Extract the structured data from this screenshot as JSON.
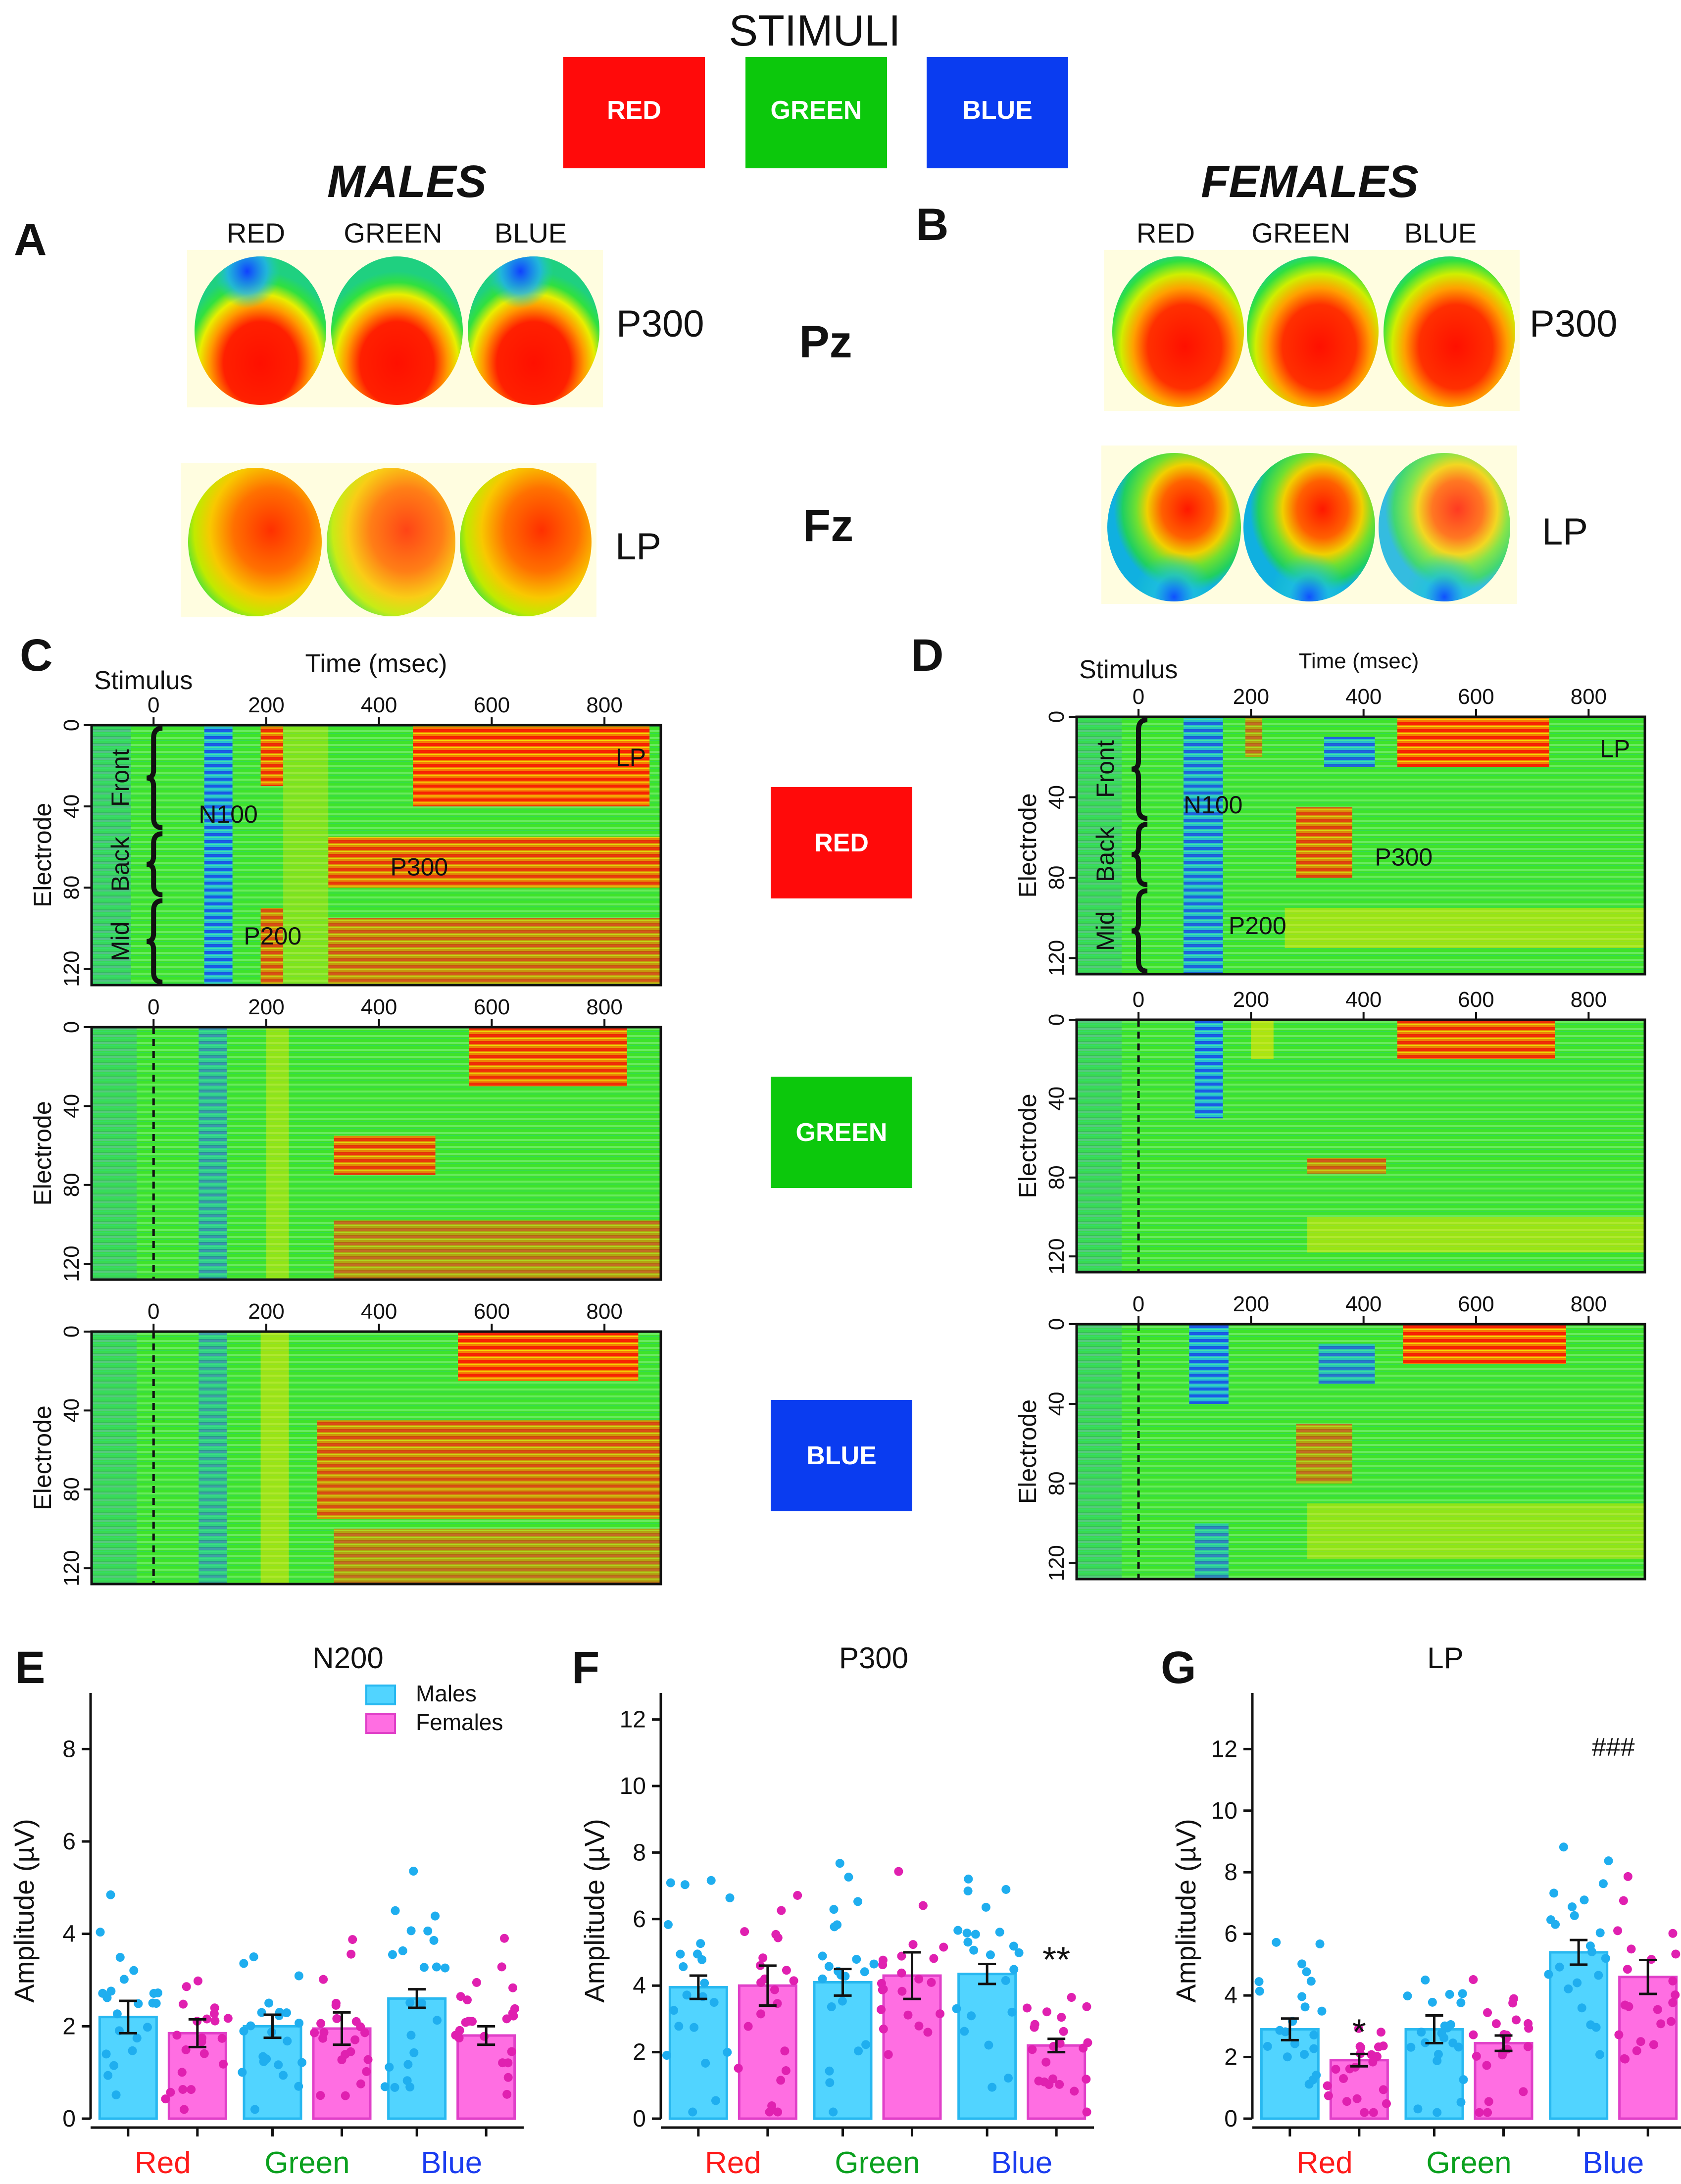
{
  "stimuli": {
    "title": "STIMULI",
    "items": [
      {
        "label": "RED",
        "color": "#ff0a0a"
      },
      {
        "label": "GREEN",
        "color": "#0cc80c"
      },
      {
        "label": "BLUE",
        "color": "#0a3cf0"
      }
    ]
  },
  "sex_titles": {
    "males": "MALES",
    "females": "FEMALES"
  },
  "panel_letters": [
    "A",
    "B",
    "C",
    "D",
    "E",
    "F",
    "G"
  ],
  "topo": {
    "color_labels": [
      "RED",
      "GREEN",
      "BLUE"
    ],
    "component_labels": {
      "p300": "P300",
      "lp": "LP"
    },
    "electrode_labels": {
      "pz": "Pz",
      "fz": "Fz"
    }
  },
  "heatmap": {
    "stimulus_label": "Stimulus",
    "time_label_males": "Time (msec)",
    "time_label_females": "Time (msec)",
    "y_label": "Electrode",
    "x_ticks": [
      "0",
      "200",
      "400",
      "600",
      "800"
    ],
    "y_ticks": [
      "0",
      "40",
      "80",
      "120"
    ],
    "region_labels": [
      "Front",
      "Back",
      "Mid"
    ],
    "component_labels": {
      "n100": "N100",
      "p200": "P200",
      "p300": "P300",
      "lp": "LP"
    },
    "center_stimuli": [
      {
        "label": "RED",
        "color": "#ff0a0a"
      },
      {
        "label": "GREEN",
        "color": "#0cc80c"
      },
      {
        "label": "BLUE",
        "color": "#0a3cf0"
      }
    ]
  },
  "chart_data": [
    {
      "panel": "E",
      "type": "bar",
      "title": "N200",
      "ylabel": "Amplitude (µV)",
      "ylim": [
        0,
        9
      ],
      "yticks": [
        0,
        2,
        4,
        6,
        8
      ],
      "categories": [
        "Red",
        "Green",
        "Blue"
      ],
      "category_colors": [
        "#ff1a1a",
        "#0aa01e",
        "#1a3cf0"
      ],
      "legend": [
        "Males",
        "Females"
      ],
      "series": [
        {
          "name": "Males",
          "color": "#33ccff",
          "values": [
            2.2,
            2.0,
            2.6
          ],
          "sem": [
            0.35,
            0.25,
            0.2
          ]
        },
        {
          "name": "Females",
          "color": "#ff55dd",
          "values": [
            1.85,
            1.95,
            1.8
          ],
          "sem": [
            0.3,
            0.35,
            0.2
          ]
        }
      ],
      "annotations": []
    },
    {
      "panel": "F",
      "type": "bar",
      "title": "P300",
      "ylabel": "Amplitude (µV)",
      "ylim": [
        0,
        12.5
      ],
      "yticks": [
        0,
        2,
        4,
        6,
        8,
        10,
        12
      ],
      "categories": [
        "Red",
        "Green",
        "Blue"
      ],
      "category_colors": [
        "#ff1a1a",
        "#0aa01e",
        "#1a3cf0"
      ],
      "series": [
        {
          "name": "Males",
          "color": "#33ccff",
          "values": [
            3.95,
            4.1,
            4.35
          ],
          "sem": [
            0.35,
            0.4,
            0.3
          ]
        },
        {
          "name": "Females",
          "color": "#ff55dd",
          "values": [
            4.0,
            4.3,
            2.2
          ],
          "sem": [
            0.6,
            0.7,
            0.2
          ]
        }
      ],
      "annotations": [
        {
          "text": "**",
          "series": "Females",
          "category": "Blue"
        }
      ]
    },
    {
      "panel": "G",
      "type": "bar",
      "title": "LP",
      "ylabel": "Amplitude (µV)",
      "ylim": [
        0,
        13.5
      ],
      "yticks": [
        0,
        2,
        4,
        6,
        8,
        10,
        12
      ],
      "categories": [
        "Red",
        "Green",
        "Blue"
      ],
      "category_colors": [
        "#ff1a1a",
        "#0aa01e",
        "#1a3cf0"
      ],
      "series": [
        {
          "name": "Males",
          "color": "#33ccff",
          "values": [
            2.9,
            2.9,
            5.4
          ],
          "sem": [
            0.35,
            0.45,
            0.4
          ]
        },
        {
          "name": "Females",
          "color": "#ff55dd",
          "values": [
            1.9,
            2.45,
            4.6
          ],
          "sem": [
            0.2,
            0.25,
            0.55
          ]
        }
      ],
      "annotations": [
        {
          "text": "*",
          "series": "Females",
          "category": "Red"
        },
        {
          "text": "###",
          "series": "both",
          "category": "Blue"
        }
      ]
    }
  ]
}
